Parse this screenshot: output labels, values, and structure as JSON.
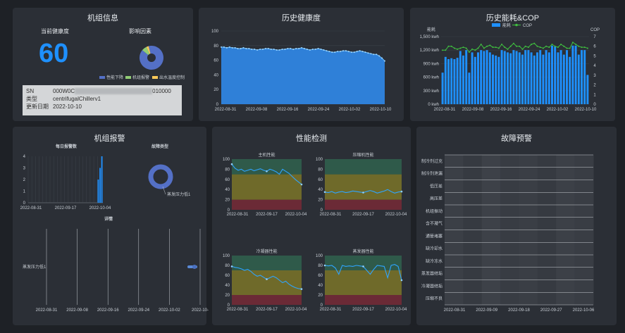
{
  "unit_info": {
    "title": "机组信息",
    "health_label": "当前健康度",
    "health_value": "60",
    "factor_title": "影响因素",
    "factor_legend": [
      "性能下降",
      "机组报警",
      "出水温度控制"
    ],
    "factor_colors": [
      "#5470c6",
      "#91cc75",
      "#fac858"
    ],
    "factor_shares": [
      0.9,
      0.07,
      0.03
    ],
    "sn_label": "SN",
    "sn_prefix": "000W0C",
    "sn_suffix": "010000",
    "type_label": "类型",
    "type_value": "centrifugalChillerv1",
    "date_label": "更新日期",
    "date_value": "2022-10-10"
  },
  "health_history": {
    "title": "历史健康度",
    "chart_data": {
      "type": "area",
      "x_ticks": [
        "2022-08-31",
        "2022-09-08",
        "2022-09-16",
        "2022-09-24",
        "2022-10-02",
        "2022-10-10"
      ],
      "y_ticks": [
        "0",
        "20",
        "40",
        "60",
        "80",
        "100"
      ],
      "ylim": [
        0,
        100
      ],
      "values": [
        78,
        78,
        77,
        78,
        77,
        77,
        76,
        76,
        77,
        76,
        76,
        75,
        75,
        74,
        75,
        75,
        76,
        76,
        75,
        75,
        74,
        74,
        75,
        75,
        76,
        76,
        75,
        76,
        76,
        77,
        76,
        75,
        74,
        75,
        75,
        76,
        75,
        74,
        73,
        72,
        71,
        71,
        72,
        72,
        73,
        73,
        72,
        71,
        71,
        72,
        73,
        72,
        71,
        70,
        69,
        68,
        68,
        66,
        63,
        59
      ],
      "color": "#2f80d8"
    }
  },
  "energy_cop": {
    "title": "历史能耗&COP",
    "legend_energy": "能耗",
    "legend_cop": "COP",
    "left_axis_label": "能耗",
    "right_axis_label": "COP",
    "chart_data": {
      "type": "bar",
      "x_ticks": [
        "2022-08-31",
        "2022-09-08",
        "2022-09-16",
        "2022-09-24",
        "2022-10-02",
        "2022-10-10"
      ],
      "y_ticks_left": [
        "0 kwh",
        "300 kwh",
        "600 kwh",
        "900 kwh",
        "1,200 kwh",
        "1,500 kwh"
      ],
      "y_ticks_right": [
        "0",
        "1",
        "2",
        "3",
        "4",
        "5",
        "6",
        "7"
      ],
      "ylim_left": [
        0,
        1500
      ],
      "ylim_right": [
        0,
        7
      ],
      "energy": [
        700,
        1050,
        1000,
        1020,
        1000,
        1030,
        1180,
        1080,
        1200,
        700,
        1150,
        1050,
        1150,
        1200,
        1180,
        1200,
        1150,
        1100,
        1080,
        1050,
        1200,
        1180,
        1150,
        1130,
        1200,
        1180,
        1150,
        1100,
        1200,
        1200,
        1150,
        1080,
        1150,
        1200,
        1100,
        1200,
        1150,
        1300,
        1280,
        1150,
        1200,
        1100,
        1200,
        1050,
        1300,
        1300,
        1100,
        1200,
        1200,
        650
      ],
      "cop": [
        5.6,
        5.6,
        6.0,
        6.0,
        5.8,
        5.7,
        5.8,
        5.9,
        5.8,
        5.4,
        5.7,
        5.6,
        5.8,
        6.2,
        5.8,
        6.0,
        6.1,
        5.9,
        5.9,
        5.8,
        6.2,
        5.9,
        5.7,
        6.0,
        6.3,
        6.0,
        6.0,
        5.7,
        6.0,
        5.9,
        6.2,
        6.3,
        6.0,
        5.9,
        5.8,
        6.0,
        5.9,
        6.2,
        6.0,
        5.9,
        6.2,
        6.0,
        5.8,
        5.8,
        6.4,
        6.2,
        6.0,
        5.9,
        5.9,
        5.8
      ],
      "bar_color": "#1e90ff",
      "cop_color": "#3fbf3f"
    }
  },
  "alarms": {
    "title": "机组报警",
    "daily_title": "每日报警数",
    "type_title": "故障类型",
    "detail_title": "详情",
    "type_label": "蒸发压力低1",
    "detail_row": "蒸发压力低1",
    "daily_chart": {
      "type": "bar",
      "x_ticks": [
        "2022-08-31",
        "2022-09-17",
        "2022-10-04"
      ],
      "y_ticks": [
        "0",
        "1",
        "2",
        "3",
        "4"
      ],
      "ylim": [
        0,
        4
      ],
      "values": [
        0,
        0,
        0,
        0,
        0,
        0,
        0,
        0,
        0,
        0,
        0,
        0,
        0,
        0,
        0,
        0,
        0,
        0,
        0,
        0,
        0,
        0,
        0,
        0,
        0,
        0,
        0,
        0,
        0,
        0,
        0,
        0,
        0,
        0,
        0,
        0,
        0,
        0,
        2,
        3,
        4
      ]
    },
    "detail_x_ticks": [
      "2022-08-31",
      "2022-09-08",
      "2022-09-16",
      "2022-09-24",
      "2022-10-02",
      "2022-10-"
    ]
  },
  "performance": {
    "title": "性能检测",
    "charts": [
      {
        "title": "主机性能",
        "values": [
          90,
          82,
          78,
          80,
          76,
          78,
          80,
          77,
          79,
          81,
          78,
          76,
          80,
          78,
          75,
          70,
          80,
          76,
          72,
          66,
          60,
          55,
          50
        ]
      },
      {
        "title": "压缩机性能",
        "values": [
          35,
          34,
          36,
          33,
          35,
          36,
          34,
          35,
          37,
          36,
          35,
          34,
          36,
          38,
          36,
          33,
          35,
          37,
          40,
          36,
          33,
          35,
          36
        ]
      },
      {
        "title": "冷凝器性能",
        "values": [
          78,
          76,
          75,
          73,
          70,
          72,
          68,
          62,
          58,
          60,
          56,
          52,
          55,
          58,
          55,
          50,
          45,
          48,
          42,
          38,
          35,
          33,
          32
        ]
      },
      {
        "title": "蒸发器性能",
        "values": [
          80,
          79,
          80,
          75,
          62,
          80,
          78,
          79,
          78,
          80,
          79,
          78,
          70,
          62,
          72,
          80,
          79,
          78,
          55,
          80,
          82,
          78,
          50
        ]
      }
    ],
    "y_ticks": [
      "0",
      "20",
      "40",
      "60",
      "80",
      "100"
    ],
    "x_ticks": [
      "2022-08-31",
      "2022-09-17",
      "2022-10-04"
    ],
    "bands": [
      "#6b2a36",
      "#6f6a2a",
      "#2f5a4a"
    ]
  },
  "fault_warning": {
    "title": "故障预警",
    "rows": [
      "制冷剂过充",
      "制冷剂泄漏",
      "低压差",
      "高压差",
      "机组振动",
      "含不凝气",
      "通管堵塞",
      "缺冷却水",
      "缺冷冻水",
      "蒸发器结垢",
      "冷凝器结垢",
      "压缩不良"
    ],
    "x_ticks": [
      "2022-08-31",
      "2022-09-09",
      "2022-09-18",
      "2022-09-27",
      "2022-10-06"
    ]
  }
}
